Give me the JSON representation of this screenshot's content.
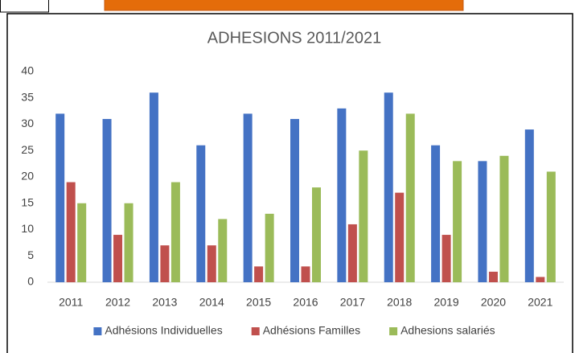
{
  "chart_data": {
    "type": "bar",
    "title": "ADHESIONS 2011/2021",
    "categories": [
      "2011",
      "2012",
      "2013",
      "2014",
      "2015",
      "2016",
      "2017",
      "2018",
      "2019",
      "2020",
      "2021"
    ],
    "series": [
      {
        "name": "Adhésions Individuelles",
        "color": "#4472c4",
        "values": [
          32,
          31,
          36,
          26,
          32,
          31,
          33,
          36,
          26,
          23,
          29
        ]
      },
      {
        "name": "Adhésions Familles",
        "color": "#c0504d",
        "values": [
          19,
          9,
          7,
          7,
          3,
          3,
          11,
          17,
          9,
          2,
          1
        ]
      },
      {
        "name": "Adhesions salariés",
        "color": "#9bbb59",
        "values": [
          15,
          15,
          19,
          12,
          13,
          18,
          25,
          32,
          23,
          24,
          21
        ]
      }
    ],
    "ylim": [
      0,
      40
    ],
    "yticks": [
      0,
      5,
      10,
      15,
      20,
      25,
      30,
      35,
      40
    ],
    "grid": false,
    "legend": "bottom"
  }
}
